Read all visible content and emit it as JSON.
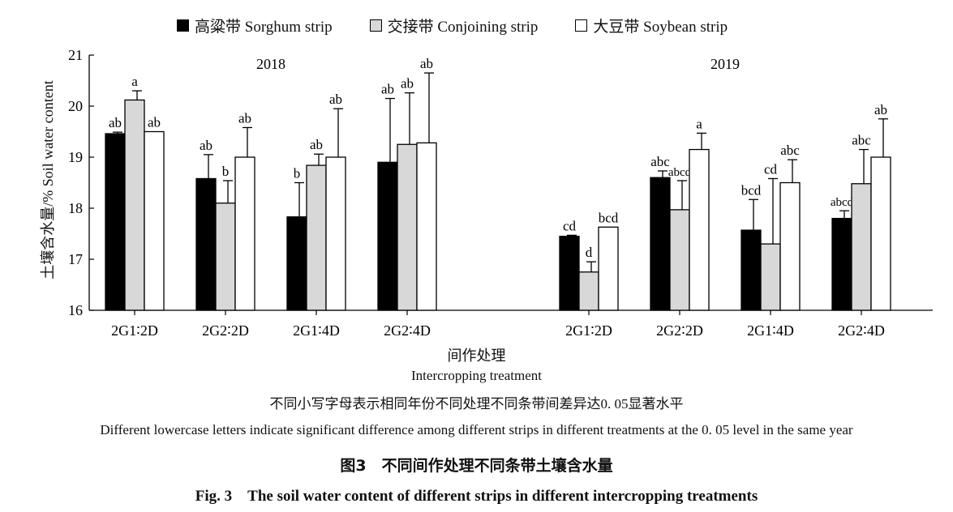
{
  "legend": [
    {
      "name": "高粱带 Sorghum strip",
      "color": "#000000"
    },
    {
      "name": "交接带 Conjoining strip",
      "color": "#d8d8d8"
    },
    {
      "name": "大豆带 Soybean strip",
      "color": "#ffffff"
    }
  ],
  "chart_data": {
    "type": "bar",
    "ylabel": "土壤含水量/%  Soil water content",
    "xlabel_cn": "间作处理",
    "xlabel_en": "Intercropping treatment",
    "ylim": [
      16,
      21
    ],
    "yticks": [
      16,
      17,
      18,
      19,
      20,
      21
    ],
    "panels": [
      {
        "title": "2018",
        "categories": [
          "2G1∶2D",
          "2G2∶2D",
          "2G1∶4D",
          "2G2∶4D"
        ],
        "series": [
          {
            "name": "高粱带 Sorghum strip",
            "values": [
              19.46,
              18.58,
              17.83,
              18.9
            ],
            "errors": [
              0.03,
              0.47,
              0.67,
              1.25
            ],
            "letters": [
              "ab",
              "ab",
              "b",
              "ab"
            ]
          },
          {
            "name": "交接带 Conjoining strip",
            "values": [
              20.12,
              18.1,
              18.84,
              19.25
            ],
            "errors": [
              0.18,
              0.44,
              0.22,
              1.01
            ],
            "letters": [
              "a",
              "b",
              "ab",
              "ab"
            ]
          },
          {
            "name": "大豆带 Soybean strip",
            "values": [
              19.5,
              19.0,
              19.0,
              19.28
            ],
            "errors": [
              0,
              0.58,
              0.95,
              1.37
            ],
            "letters": [
              "ab",
              "ab",
              "ab",
              "ab"
            ]
          }
        ]
      },
      {
        "title": "2019",
        "categories": [
          "2G1∶2D",
          "2G2∶2D",
          "2G1∶4D",
          "2G2∶4D"
        ],
        "series": [
          {
            "name": "高粱带 Sorghum strip",
            "values": [
              17.45,
              18.6,
              17.57,
              17.8
            ],
            "errors": [
              0.02,
              0.13,
              0.6,
              0.15
            ],
            "letters": [
              "cd",
              "abc",
              "bcd",
              "abcd"
            ]
          },
          {
            "name": "交接带 Conjoining strip",
            "values": [
              16.75,
              17.97,
              17.3,
              18.48
            ],
            "errors": [
              0.2,
              0.57,
              1.28,
              0.67
            ],
            "letters": [
              "d",
              "abcd",
              "cd",
              "abc"
            ]
          },
          {
            "name": "大豆带 Soybean strip",
            "values": [
              17.63,
              19.15,
              18.5,
              19.0
            ],
            "errors": [
              0,
              0.32,
              0.45,
              0.75
            ],
            "letters": [
              "bcd",
              "a",
              "abc",
              "ab"
            ]
          }
        ]
      }
    ]
  },
  "captions": {
    "xlabel_cn": "间作处理",
    "xlabel_en": "Intercropping treatment",
    "note_cn": "不同小写字母表示相同年份不同处理不同条带间差异达0. 05显著水平",
    "note_en": "Different lowercase letters indicate significant difference among different strips in different treatments at the 0. 05 level in the same year",
    "figure_cn": "图3　不同间作处理不同条带土壤含水量",
    "figure_en": "Fig. 3　The soil water content of different strips in different intercropping treatments"
  }
}
